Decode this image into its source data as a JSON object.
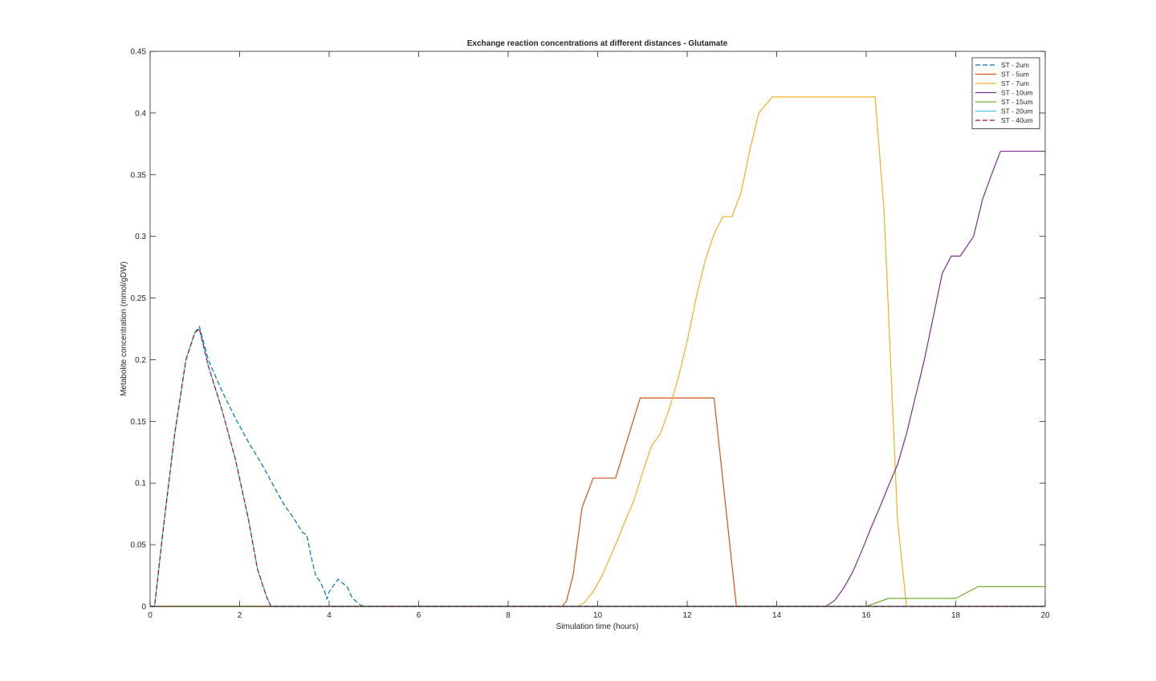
{
  "chart_data": {
    "type": "line",
    "title": "Exchange reaction concentrations at different distances - Glutamate",
    "xlabel": "Simulation time (hours)",
    "ylabel": "Metabolite concentration (mmol/gDW)",
    "xlim": [
      0,
      20
    ],
    "ylim": [
      0,
      0.45
    ],
    "xticks": [
      0,
      2,
      4,
      6,
      8,
      10,
      12,
      14,
      16,
      18,
      20
    ],
    "yticks": [
      0,
      0.05,
      0.1,
      0.15,
      0.2,
      0.25,
      0.3,
      0.35,
      0.4,
      0.45
    ],
    "xtick_labels": [
      "0",
      "2",
      "4",
      "6",
      "8",
      "10",
      "12",
      "14",
      "16",
      "18",
      "20"
    ],
    "ytick_labels": [
      "0",
      "0.05",
      "0.1",
      "0.15",
      "0.2",
      "0.25",
      "0.3",
      "0.35",
      "0.4",
      "0.45"
    ],
    "grid": false,
    "legend_position": "top-right",
    "series": [
      {
        "name": "ST - 2um",
        "color": "#0072BD",
        "dashed": true,
        "x": [
          0,
          0.1,
          0.3,
          0.55,
          0.8,
          1.0,
          1.1,
          1.3,
          1.6,
          1.9,
          2.2,
          2.5,
          2.8,
          3.0,
          3.2,
          3.3,
          3.4,
          3.5,
          3.6,
          3.7,
          3.8,
          3.9,
          3.95,
          4.0,
          4.1,
          4.2,
          4.3,
          4.4,
          4.5,
          4.6,
          4.7,
          4.8,
          20
        ],
        "y": [
          0,
          0,
          0.065,
          0.14,
          0.2,
          0.222,
          0.227,
          0.2,
          0.175,
          0.153,
          0.133,
          0.115,
          0.095,
          0.082,
          0.072,
          0.066,
          0.06,
          0.058,
          0.04,
          0.025,
          0.02,
          0.012,
          0.006,
          0.012,
          0.017,
          0.022,
          0.019,
          0.016,
          0.008,
          0.004,
          0.001,
          0,
          0
        ]
      },
      {
        "name": "ST - 5um",
        "color": "#D95319",
        "dashed": false,
        "x": [
          0,
          9.2,
          9.3,
          9.45,
          9.65,
          9.9,
          10.4,
          10.95,
          12.6,
          13.1,
          20
        ],
        "y": [
          0,
          0,
          0.004,
          0.025,
          0.08,
          0.104,
          0.104,
          0.169,
          0.169,
          0,
          0
        ]
      },
      {
        "name": "ST - 7um",
        "color": "#EDB120",
        "dashed": false,
        "x": [
          0,
          9.55,
          9.7,
          9.9,
          10.1,
          10.4,
          10.6,
          10.8,
          11.0,
          11.2,
          11.4,
          11.6,
          11.8,
          12.0,
          12.2,
          12.4,
          12.6,
          12.8,
          13.0,
          13.2,
          13.4,
          13.6,
          13.9,
          16.2,
          16.4,
          16.7,
          16.9,
          20
        ],
        "y": [
          0,
          0,
          0.003,
          0.012,
          0.025,
          0.05,
          0.068,
          0.085,
          0.108,
          0.13,
          0.14,
          0.16,
          0.185,
          0.215,
          0.25,
          0.28,
          0.302,
          0.316,
          0.316,
          0.335,
          0.37,
          0.4,
          0.413,
          0.413,
          0.32,
          0.07,
          0,
          0
        ]
      },
      {
        "name": "ST - 10um",
        "color": "#7E2F8E",
        "dashed": false,
        "x": [
          0,
          15.1,
          15.3,
          15.5,
          15.7,
          15.9,
          16.1,
          16.3,
          16.5,
          16.7,
          16.9,
          17.1,
          17.3,
          17.5,
          17.7,
          17.9,
          18.1,
          18.4,
          18.6,
          18.8,
          19.0,
          19.2,
          20
        ],
        "y": [
          0,
          0,
          0.005,
          0.015,
          0.028,
          0.045,
          0.063,
          0.08,
          0.098,
          0.115,
          0.14,
          0.17,
          0.2,
          0.235,
          0.27,
          0.284,
          0.284,
          0.3,
          0.33,
          0.35,
          0.369,
          0.369,
          0.369
        ]
      },
      {
        "name": "ST - 15um",
        "color": "#77AC30",
        "dashed": false,
        "x": [
          0,
          16.0,
          16.5,
          18.0,
          18.5,
          20
        ],
        "y": [
          0,
          0,
          0.0065,
          0.0065,
          0.016,
          0.016
        ]
      },
      {
        "name": "ST - 20um",
        "color": "#4DBEEE",
        "dashed": false,
        "x": [
          0,
          0.1,
          0.3,
          0.55,
          0.8,
          1.0,
          1.1,
          1.3,
          1.6,
          1.9,
          2.2,
          2.4,
          2.6,
          2.7,
          20
        ],
        "y": [
          0,
          0,
          0.065,
          0.14,
          0.2,
          0.222,
          0.225,
          0.195,
          0.16,
          0.12,
          0.07,
          0.03,
          0.008,
          0,
          0
        ]
      },
      {
        "name": "ST - 40um",
        "color": "#A2142F",
        "dashed": true,
        "x": [
          0,
          0.1,
          0.3,
          0.55,
          0.8,
          1.0,
          1.1,
          1.3,
          1.6,
          1.9,
          2.2,
          2.4,
          2.6,
          2.7,
          20
        ],
        "y": [
          0,
          0,
          0.065,
          0.14,
          0.2,
          0.222,
          0.225,
          0.195,
          0.16,
          0.12,
          0.07,
          0.03,
          0.008,
          0,
          0
        ]
      }
    ]
  }
}
